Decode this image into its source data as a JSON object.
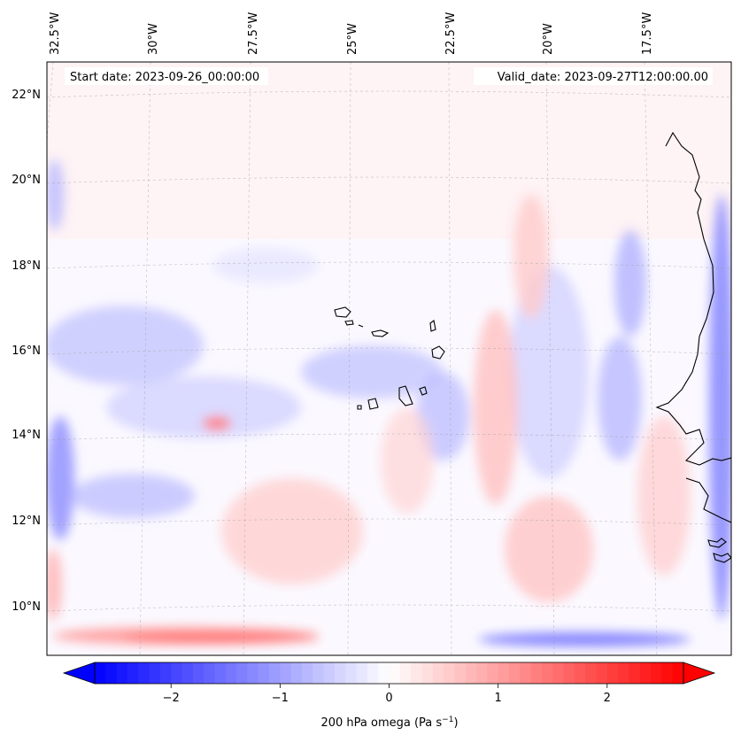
{
  "header": {
    "start_date": "Start date: 2023-09-26_00:00:00",
    "valid_date": "Valid_date: 2023-09-27T12:00:00.00"
  },
  "map": {
    "projection": "conic",
    "lon_labels": [
      "32.5°W",
      "30°W",
      "27.5°W",
      "25°W",
      "22.5°W",
      "20°W",
      "17.5°W"
    ],
    "lat_labels": [
      "22°N",
      "20°N",
      "18°N",
      "16°N",
      "14°N",
      "12°N",
      "10°N"
    ],
    "gridlines": "dashed",
    "land_outline": "black coastline, Cape Verde islands and West African coast"
  },
  "field": {
    "variable": "200 hPa omega",
    "colormap": "bwr",
    "negative_color": "#0000ff",
    "positive_color": "#ff0000"
  },
  "colorbar": {
    "label": "200 hPa omega (Pa s",
    "label_sup": "−1",
    "label_end": ")",
    "ticks": [
      "−2",
      "−1",
      "0",
      "1",
      "2"
    ],
    "tick_values": [
      -2,
      -1,
      0,
      1,
      2
    ],
    "range": [
      -2.7,
      2.7
    ],
    "extend": "both"
  }
}
